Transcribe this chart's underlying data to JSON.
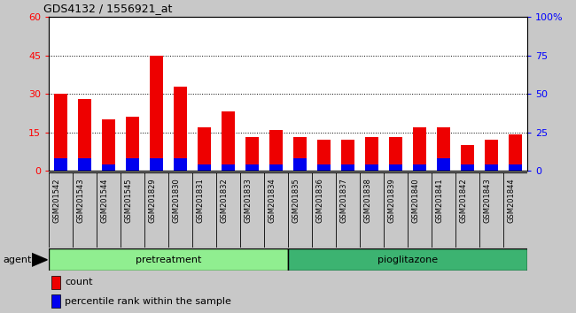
{
  "title": "GDS4132 / 1556921_at",
  "samples": [
    "GSM201542",
    "GSM201543",
    "GSM201544",
    "GSM201545",
    "GSM201829",
    "GSM201830",
    "GSM201831",
    "GSM201832",
    "GSM201833",
    "GSM201834",
    "GSM201835",
    "GSM201836",
    "GSM201837",
    "GSM201838",
    "GSM201839",
    "GSM201840",
    "GSM201841",
    "GSM201842",
    "GSM201843",
    "GSM201844"
  ],
  "count_values": [
    30,
    28,
    20,
    21,
    45,
    33,
    17,
    23,
    13,
    16,
    13,
    12,
    12,
    13,
    13,
    17,
    17,
    10,
    12,
    14
  ],
  "percentile_values": [
    8,
    8,
    4,
    8,
    8,
    8,
    4,
    4,
    4,
    4,
    8,
    4,
    4,
    4,
    4,
    4,
    8,
    4,
    4,
    4
  ],
  "group1_label": "pretreatment",
  "group2_label": "pioglitazone",
  "group1_count": 10,
  "group2_count": 10,
  "group1_color": "#90EE90",
  "group2_color": "#3CB371",
  "bar_color_red": "#EE0000",
  "bar_color_blue": "#0000EE",
  "ylim_left": [
    0,
    60
  ],
  "ylim_right": [
    0,
    100
  ],
  "yticks_left": [
    0,
    15,
    30,
    45,
    60
  ],
  "yticks_right": [
    0,
    25,
    50,
    75,
    100
  ],
  "ytick_labels_left": [
    "0",
    "15",
    "30",
    "45",
    "60"
  ],
  "ytick_labels_right": [
    "0",
    "25",
    "50",
    "75",
    "100%"
  ],
  "grid_lines_at": [
    15,
    30,
    45
  ],
  "legend_count_label": "count",
  "legend_pct_label": "percentile rank within the sample",
  "agent_label": "agent",
  "background_color": "#C8C8C8",
  "plot_bg_color": "#FFFFFF",
  "bar_width": 0.55
}
